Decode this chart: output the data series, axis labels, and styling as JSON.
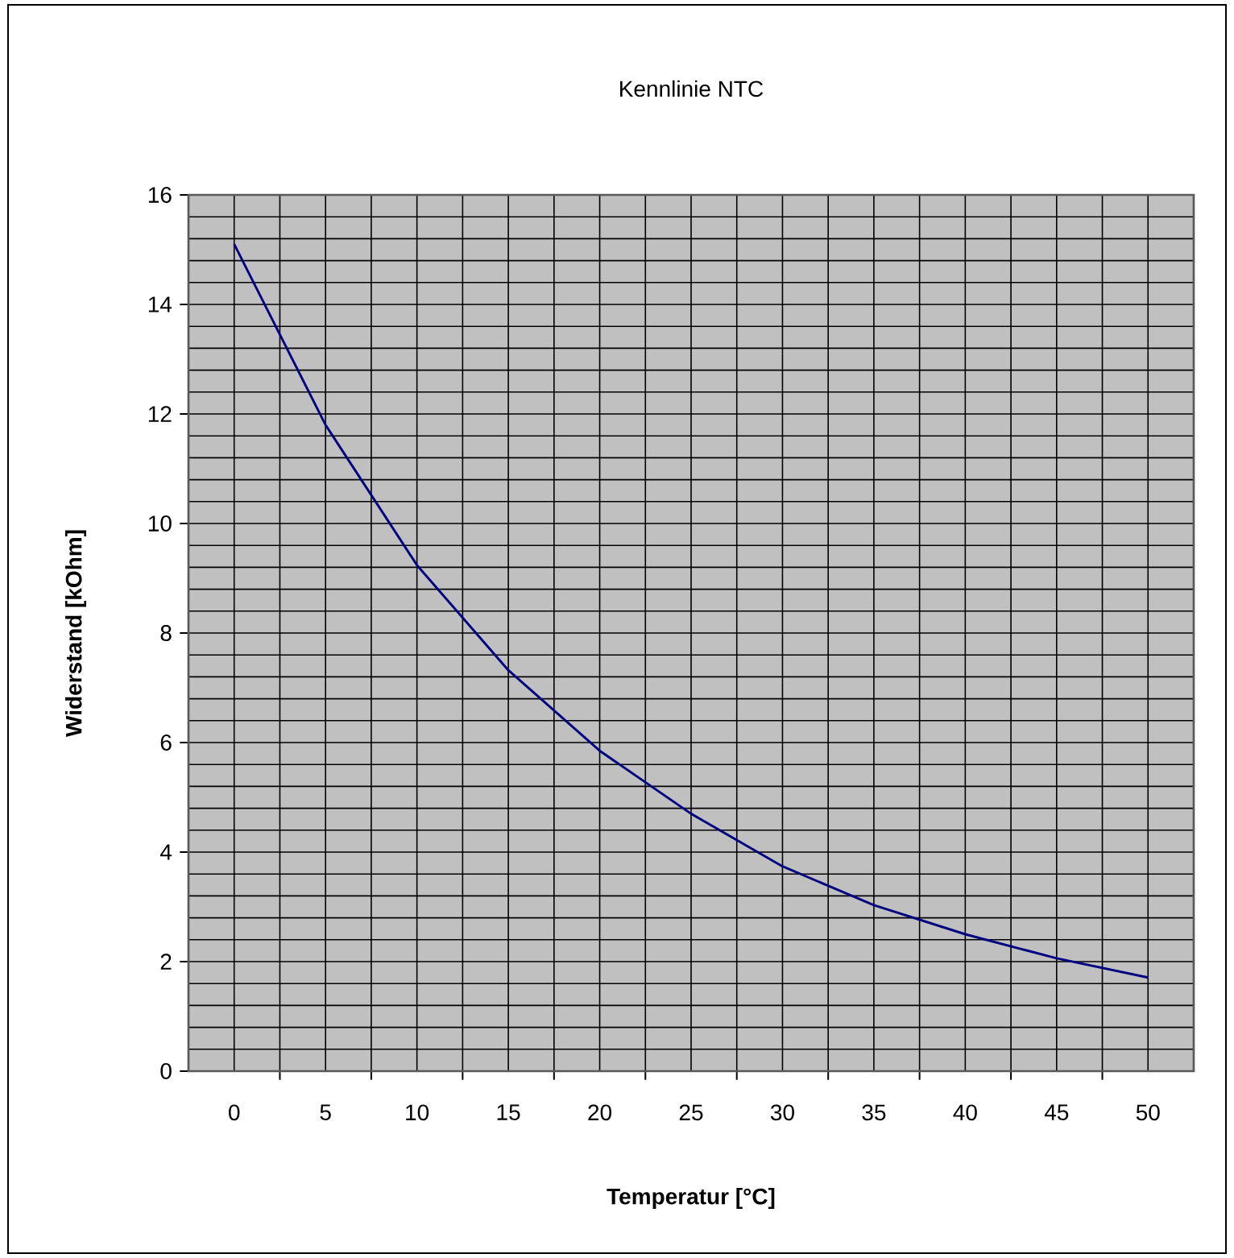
{
  "chart_data": {
    "type": "line",
    "title": "Kennlinie NTC",
    "xlabel": "Temperatur [°C]",
    "ylabel": "Widerstand [kOhm]",
    "categories": [
      "0",
      "5",
      "10",
      "15",
      "20",
      "25",
      "30",
      "35",
      "40",
      "45",
      "50"
    ],
    "series": [
      {
        "color": "#000080",
        "values": [
          15.1,
          11.8,
          9.24,
          7.32,
          5.85,
          4.7,
          3.74,
          3.03,
          2.5,
          2.06,
          1.71
        ]
      }
    ],
    "ylim": [
      0,
      16
    ],
    "yticks": [
      0,
      2,
      4,
      6,
      8,
      10,
      12,
      14,
      16
    ],
    "grid": true
  }
}
